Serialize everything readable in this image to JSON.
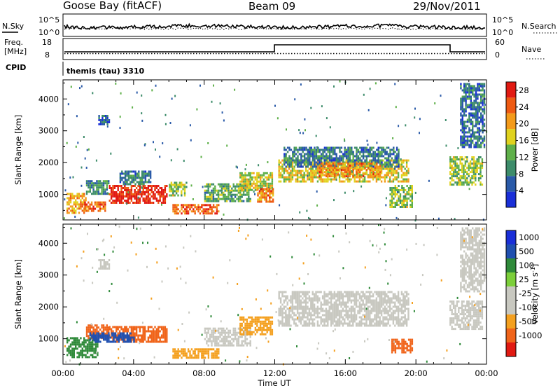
{
  "header": {
    "station": "Goose Bay (fitACF)",
    "beam": "Beam 09",
    "date": "29/Nov/2011"
  },
  "noise_panel": {
    "left_label": "N.Sky",
    "right_label": "N.Search",
    "left_ticks": [
      "10^5",
      "10^0"
    ],
    "right_ticks": [
      "10^5",
      "10^0"
    ]
  },
  "freq_panel": {
    "left_label_1": "Freq.",
    "left_label_2": "[MHz]",
    "right_label": "Nave",
    "left_ticks": [
      "18",
      "8"
    ],
    "right_ticks": [
      "60",
      "0"
    ]
  },
  "cpid": {
    "label": "CPID",
    "value": "themis (tau) 3310"
  },
  "x_axis": {
    "label": "Time UT",
    "ticks": [
      "00:00",
      "04:00",
      "08:00",
      "12:00",
      "16:00",
      "20:00",
      "00:00"
    ]
  },
  "colors": {
    "power": [
      "#1a2fd8",
      "#2a5aa8",
      "#3d8c6a",
      "#5fb04a",
      "#e0d21e",
      "#f39a1a",
      "#ee5a12",
      "#e11a12"
    ],
    "velocity": [
      "#e11a12",
      "#f0641a",
      "#f4a01f",
      "#c8c8c0",
      "#c8c8c0",
      "#7ccf3a",
      "#2f8a3a",
      "#2050b0",
      "#1a2fd8"
    ],
    "grey": "#c8c8c0"
  },
  "chart_data": [
    {
      "type": "heatmap",
      "panel": "power",
      "ylabel": "Slant Range [km]",
      "yticks": [
        "1000",
        "2000",
        "3000",
        "4000"
      ],
      "ylim": [
        200,
        4600
      ],
      "xlim_hours": [
        0,
        24
      ],
      "colorbar": {
        "label": "Power [dB]",
        "ticks": [
          "4",
          "8",
          "12",
          "16",
          "20",
          "24",
          "28"
        ],
        "range": [
          0,
          30
        ]
      },
      "regions": [
        {
          "t": [
            0.2,
            1.3
          ],
          "r": [
            450,
            1050
          ],
          "v": 20
        },
        {
          "t": [
            1.2,
            2.4
          ],
          "r": [
            500,
            780
          ],
          "v": 24
        },
        {
          "t": [
            1.3,
            2.6
          ],
          "r": [
            1000,
            1450
          ],
          "v": 10
        },
        {
          "t": [
            2.6,
            5.9
          ],
          "r": [
            750,
            1300
          ],
          "v": 28
        },
        {
          "t": [
            3.2,
            5.0
          ],
          "r": [
            1350,
            1750
          ],
          "v": 8
        },
        {
          "t": [
            6.0,
            7.0
          ],
          "r": [
            1000,
            1400
          ],
          "v": 14
        },
        {
          "t": [
            6.2,
            8.8
          ],
          "r": [
            380,
            700
          ],
          "v": 24
        },
        {
          "t": [
            8.0,
            10.6
          ],
          "r": [
            800,
            1350
          ],
          "v": 12
        },
        {
          "t": [
            10.0,
            11.9
          ],
          "r": [
            1150,
            1700
          ],
          "v": 16
        },
        {
          "t": [
            11.0,
            11.9
          ],
          "r": [
            800,
            1200
          ],
          "v": 22
        },
        {
          "t": [
            12.2,
            19.6
          ],
          "r": [
            1400,
            2100
          ],
          "v": 17
        },
        {
          "t": [
            12.5,
            19.0
          ],
          "r": [
            1900,
            2500
          ],
          "v": 8
        },
        {
          "t": [
            14.5,
            18.0
          ],
          "r": [
            1600,
            2000
          ],
          "v": 22
        },
        {
          "t": [
            18.5,
            19.8
          ],
          "r": [
            600,
            1300
          ],
          "v": 14
        },
        {
          "t": [
            2.0,
            2.6
          ],
          "r": [
            3200,
            3500
          ],
          "v": 6
        },
        {
          "t": [
            21.9,
            23.8
          ],
          "r": [
            1300,
            2200
          ],
          "v": 14
        },
        {
          "t": [
            22.5,
            23.9
          ],
          "r": [
            2500,
            4500
          ],
          "v": 7
        }
      ]
    },
    {
      "type": "heatmap",
      "panel": "velocity",
      "ylabel": "Slant Range [km]",
      "yticks": [
        "1000",
        "2000",
        "3000",
        "4000"
      ],
      "ylim": [
        200,
        4600
      ],
      "xlim_hours": [
        0,
        24
      ],
      "colorbar": {
        "label": "Velocity [m s^-1]",
        "ticks": [
          "1000",
          "500",
          "100",
          "25",
          "-25",
          "-100",
          "-500",
          "-1000"
        ]
      },
      "regions": [
        {
          "t": [
            0.2,
            2.0
          ],
          "r": [
            450,
            1050
          ],
          "v": 100
        },
        {
          "t": [
            1.3,
            2.6
          ],
          "r": [
            1050,
            1450
          ],
          "v": -500
        },
        {
          "t": [
            2.6,
            5.9
          ],
          "r": [
            900,
            1400
          ],
          "v": -500
        },
        {
          "t": [
            1.5,
            4.0
          ],
          "r": [
            900,
            1200
          ],
          "v": 500
        },
        {
          "t": [
            6.2,
            8.8
          ],
          "r": [
            380,
            700
          ],
          "v": -100
        },
        {
          "t": [
            8.0,
            10.6
          ],
          "r": [
            800,
            1350
          ],
          "v": 0
        },
        {
          "t": [
            10.0,
            11.9
          ],
          "r": [
            1150,
            1700
          ],
          "v": -100
        },
        {
          "t": [
            12.2,
            19.6
          ],
          "r": [
            1400,
            2500
          ],
          "v": 0
        },
        {
          "t": [
            18.6,
            19.8
          ],
          "r": [
            600,
            1000
          ],
          "v": -500
        },
        {
          "t": [
            2.0,
            2.6
          ],
          "r": [
            3200,
            3500
          ],
          "v": 0
        },
        {
          "t": [
            21.9,
            23.8
          ],
          "r": [
            1300,
            2200
          ],
          "v": 0
        },
        {
          "t": [
            22.5,
            23.9
          ],
          "r": [
            2500,
            4500
          ],
          "v": 0
        }
      ]
    }
  ]
}
